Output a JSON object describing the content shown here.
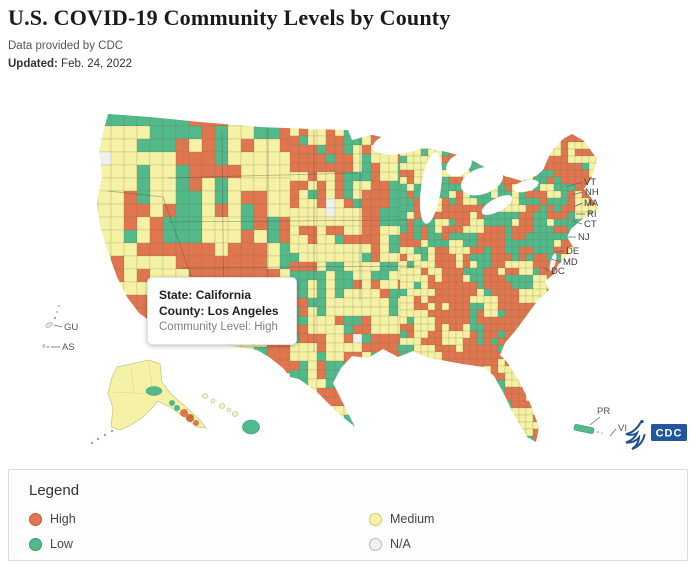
{
  "header": {
    "title": "U.S. COVID-19 Community Levels by County",
    "source": "Data provided by CDC",
    "updated_label": "Updated:",
    "updated_value": "Feb. 24, 2022"
  },
  "tooltip": {
    "state_label": "State:",
    "state": "California",
    "county_label": "County:",
    "county": "Los Angeles",
    "level_label": "Community Level:",
    "level": "High"
  },
  "map": {
    "state_callouts": [
      "VT",
      "NH",
      "MA",
      "RI",
      "CT",
      "NJ",
      "DE",
      "MD",
      "DC"
    ],
    "territories": {
      "gu": "GU",
      "as": "AS",
      "pr": "PR",
      "vi": "VI"
    },
    "cdc_logo_text": "CDC"
  },
  "legend": {
    "title": "Legend",
    "items": [
      {
        "label": "High",
        "color": "#E0764F",
        "border": "#c25b33"
      },
      {
        "label": "Medium",
        "color": "#F5F2A5",
        "border": "#cfc972"
      },
      {
        "label": "Low",
        "color": "#52B98A",
        "border": "#2f9868"
      },
      {
        "label": "N/A",
        "color": "#F0F0EE",
        "border": "#b9b9b9"
      }
    ]
  },
  "chart_data": {
    "type": "choropleth",
    "title": "U.S. COVID-19 Community Levels by County",
    "region": "United States counties (incl. AK, HI, PR, VI, GU, AS)",
    "categories": [
      "High",
      "Medium",
      "Low",
      "N/A"
    ],
    "colors": {
      "High": "#E0764F",
      "Medium": "#F5F2A5",
      "Low": "#52B98A",
      "N/A": "#F0F0EE"
    },
    "county_border_color": "#8f8a5c",
    "source": "Data provided by CDC",
    "updated": "Feb. 24, 2022",
    "highlighted_county": {
      "state": "California",
      "county": "Los Angeles",
      "community_level": "High"
    },
    "legend_position": "bottom"
  }
}
